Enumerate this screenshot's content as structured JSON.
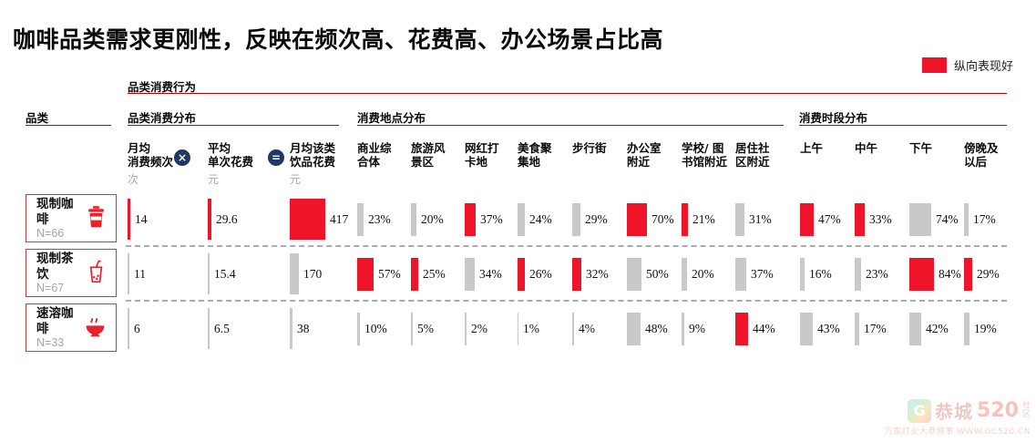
{
  "slide": {
    "title": "咖啡品类需求更刚性，反映在频次高、花费高、办公场景占比高",
    "legend": {
      "label": "纵向表现好",
      "color": "#F0142B"
    },
    "watermark": {
      "logo_letter": "G",
      "name": "恭城",
      "number": "520",
      "suffix": "社\n区",
      "tagline": "万家灯火大恭城事 WWW.GC520.CN"
    }
  },
  "chart_data": {
    "type": "table",
    "title": "品类消费行为",
    "row_header": "品类",
    "highlight_color": "#F0142B",
    "base_bar_color": "#C9C9C9",
    "legend": [
      {
        "label": "纵向表现好",
        "color": "#F0142B"
      }
    ],
    "operators": [
      "×",
      "="
    ],
    "groups": [
      {
        "label": "品类消费分布",
        "columns": [
          {
            "label": "月均\n消费频次",
            "unit": "次"
          },
          {
            "label": "平均\n单次花费",
            "unit": "元"
          },
          {
            "label": "月均该类\n饮品花费",
            "unit": "元"
          }
        ]
      },
      {
        "label": "消费地点分布",
        "columns": [
          {
            "label": "商业综\n合体"
          },
          {
            "label": "旅游风\n景区"
          },
          {
            "label": "网红打\n卡地"
          },
          {
            "label": "美食聚\n集地"
          },
          {
            "label": "步行街"
          },
          {
            "label": "办公室\n附近"
          },
          {
            "label": "学校/ 图\n书馆附近"
          },
          {
            "label": "居住社\n区附近"
          }
        ]
      },
      {
        "label": "消费时段分布",
        "columns": [
          {
            "label": "上午"
          },
          {
            "label": "中午"
          },
          {
            "label": "下午"
          },
          {
            "label": "傍晚及\n以后"
          }
        ]
      }
    ],
    "rows": [
      {
        "category": "现制咖啡",
        "n": "N=66",
        "icon": "paper-cup",
        "metrics": [
          {
            "value": "14",
            "bar": 3,
            "hi": true
          },
          {
            "value": "29.6",
            "bar": 4,
            "hi": true
          },
          {
            "value": "417",
            "bar": 39,
            "hi": true
          }
        ],
        "locations": [
          {
            "value": "23%",
            "bar": 7,
            "hi": false
          },
          {
            "value": "20%",
            "bar": 6,
            "hi": false
          },
          {
            "value": "37%",
            "bar": 12,
            "hi": true
          },
          {
            "value": "24%",
            "bar": 8,
            "hi": false
          },
          {
            "value": "29%",
            "bar": 9,
            "hi": false
          },
          {
            "value": "70%",
            "bar": 22,
            "hi": true
          },
          {
            "value": "21%",
            "bar": 7,
            "hi": true
          },
          {
            "value": "31%",
            "bar": 10,
            "hi": false
          }
        ],
        "times": [
          {
            "value": "47%",
            "bar": 15,
            "hi": true
          },
          {
            "value": "33%",
            "bar": 11,
            "hi": true
          },
          {
            "value": "74%",
            "bar": 24,
            "hi": false
          },
          {
            "value": "17%",
            "bar": 5,
            "hi": false
          }
        ]
      },
      {
        "category": "现制茶饮",
        "n": "N=67",
        "icon": "bubble-tea",
        "metrics": [
          {
            "value": "11",
            "bar": 2,
            "hi": false
          },
          {
            "value": "15.4",
            "bar": 2,
            "hi": false
          },
          {
            "value": "170",
            "bar": 10,
            "hi": false
          }
        ],
        "locations": [
          {
            "value": "57%",
            "bar": 18,
            "hi": true
          },
          {
            "value": "25%",
            "bar": 8,
            "hi": true
          },
          {
            "value": "34%",
            "bar": 11,
            "hi": false
          },
          {
            "value": "26%",
            "bar": 8,
            "hi": true
          },
          {
            "value": "32%",
            "bar": 10,
            "hi": true
          },
          {
            "value": "50%",
            "bar": 16,
            "hi": false
          },
          {
            "value": "20%",
            "bar": 6,
            "hi": false
          },
          {
            "value": "37%",
            "bar": 12,
            "hi": false
          }
        ],
        "times": [
          {
            "value": "16%",
            "bar": 5,
            "hi": false
          },
          {
            "value": "23%",
            "bar": 7,
            "hi": false
          },
          {
            "value": "84%",
            "bar": 27,
            "hi": true
          },
          {
            "value": "29%",
            "bar": 9,
            "hi": true
          }
        ]
      },
      {
        "category": "速溶咖啡",
        "n": "N=33",
        "icon": "coffee-bowl",
        "metrics": [
          {
            "value": "6",
            "bar": 2,
            "hi": false
          },
          {
            "value": "6.5",
            "bar": 2,
            "hi": false
          },
          {
            "value": "38",
            "bar": 3,
            "hi": false
          }
        ],
        "locations": [
          {
            "value": "10%",
            "bar": 3,
            "hi": false
          },
          {
            "value": "5%",
            "bar": 2,
            "hi": false
          },
          {
            "value": "2%",
            "bar": 2,
            "hi": false
          },
          {
            "value": "1%",
            "bar": 1,
            "hi": false
          },
          {
            "value": "4%",
            "bar": 2,
            "hi": false
          },
          {
            "value": "48%",
            "bar": 15,
            "hi": false
          },
          {
            "value": "9%",
            "bar": 3,
            "hi": false
          },
          {
            "value": "44%",
            "bar": 14,
            "hi": true
          }
        ],
        "times": [
          {
            "value": "43%",
            "bar": 14,
            "hi": false
          },
          {
            "value": "17%",
            "bar": 5,
            "hi": false
          },
          {
            "value": "42%",
            "bar": 13,
            "hi": false
          },
          {
            "value": "19%",
            "bar": 6,
            "hi": false
          }
        ]
      }
    ]
  }
}
